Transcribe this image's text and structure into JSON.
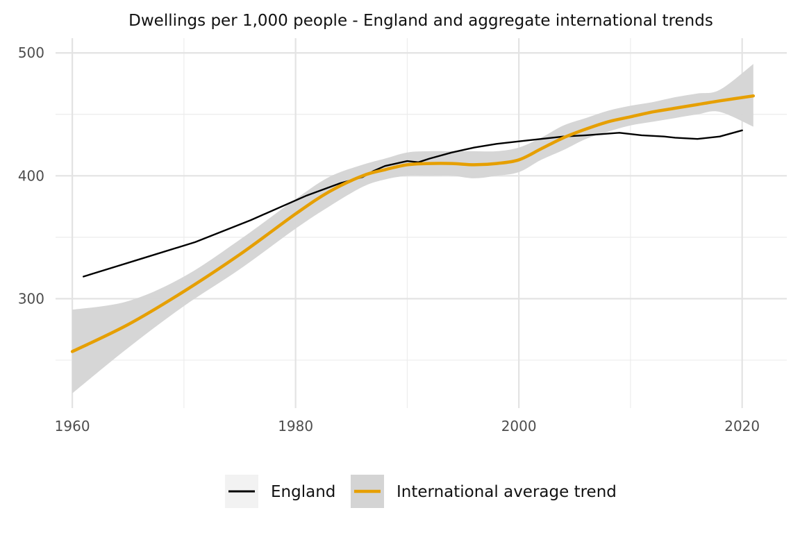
{
  "chart_data": {
    "type": "line",
    "title": "Dwellings per 1,000 people - England and aggregate international trends",
    "xlabel": "",
    "ylabel": "",
    "xlim": [
      1958.5,
      2024
    ],
    "ylim": [
      211,
      512
    ],
    "x_ticks": [
      "1960",
      "1980",
      "2000",
      "2020"
    ],
    "y_ticks": [
      "300",
      "400",
      "500"
    ],
    "grid": true,
    "legend_position": "bottom",
    "series": [
      {
        "name": "England",
        "color": "#000000",
        "x": [
          1961,
          1966,
          1971,
          1976,
          1981,
          1984,
          1986,
          1987,
          1988,
          1990,
          1991,
          1992,
          1994,
          1996,
          1998,
          2000,
          2002,
          2004,
          2006,
          2009,
          2011,
          2013,
          2014,
          2016,
          2018,
          2020
        ],
        "y": [
          318,
          332,
          346,
          364,
          384,
          394,
          399,
          404,
          408,
          412,
          411,
          414,
          419,
          423,
          426,
          428,
          430,
          432,
          433,
          435,
          433,
          432,
          431,
          430,
          432,
          437
        ]
      },
      {
        "name": "International average trend",
        "color": "#E69F00",
        "x": [
          1960,
          1965,
          1970,
          1975,
          1980,
          1983,
          1986,
          1988,
          1990,
          1992,
          1994,
          1996,
          1998,
          2000,
          2002,
          2004,
          2006,
          2008,
          2010,
          2012,
          2014,
          2016,
          2018,
          2021
        ],
        "y": [
          257,
          279,
          306,
          336,
          369,
          387,
          400,
          405,
          409,
          410,
          410,
          409,
          410,
          413,
          422,
          431,
          438,
          444,
          448,
          452,
          455,
          458,
          461,
          465
        ],
        "ci_lower": [
          223,
          260,
          294,
          324,
          357,
          375,
          391,
          397,
          400,
          400,
          400,
          398,
          400,
          403,
          413,
          421,
          430,
          436,
          441,
          444,
          447,
          450,
          452,
          440
        ],
        "ci_upper": [
          291,
          298,
          318,
          348,
          381,
          399,
          409,
          414,
          419,
          420,
          420,
          420,
          420,
          423,
          431,
          441,
          447,
          453,
          457,
          460,
          464,
          467,
          470,
          491
        ]
      }
    ]
  }
}
